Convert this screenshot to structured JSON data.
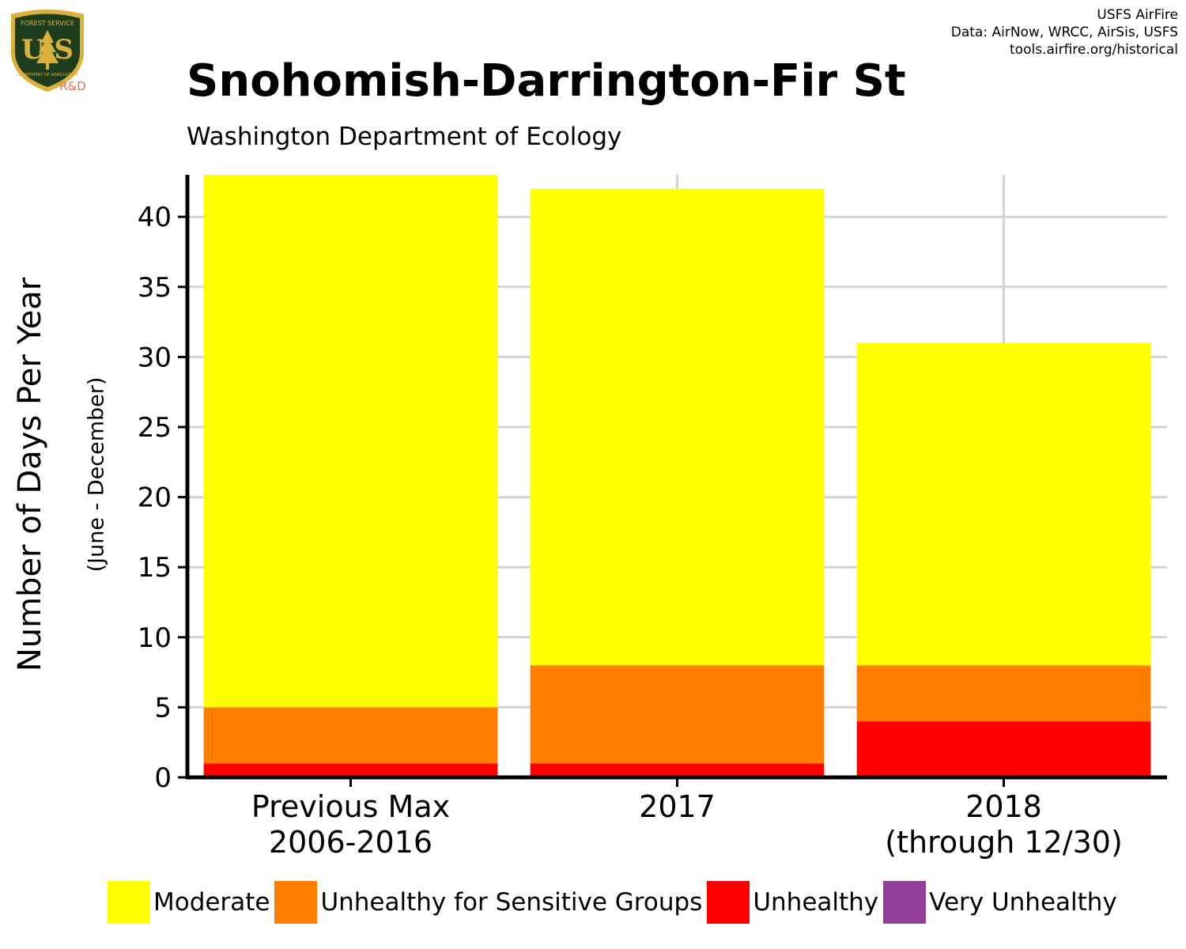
{
  "header": {
    "credit_lines": [
      "USFS AirFire",
      "Data: AirNow, WRCC, AirSis, USFS",
      "tools.airfire.org/historical"
    ],
    "logo_text_top": "FOREST SERVICE",
    "logo_text_big": "U S",
    "logo_text_bottom": "DEPARTMENT OF AGRICULTURE",
    "logo_rd": "R&D"
  },
  "colors": {
    "moderate": "#ffff00",
    "usg": "#ff7e00",
    "unhealthy": "#ff0000",
    "very_unhealthy": "#8f3f97",
    "grid": "#d3d3d3",
    "logo_shield": "#1d3d1d",
    "logo_gold": "#d9b13b",
    "logo_rd": "#e4704f"
  },
  "chart_data": {
    "type": "bar",
    "stacked": true,
    "title": "Snohomish-Darrington-Fir St",
    "subtitle": "Washington Department of Ecology",
    "ylabel": "Number of Days Per Year",
    "ylabel_sub": "(June - December)",
    "ylim": [
      0,
      43
    ],
    "yticks": [
      0,
      5,
      10,
      15,
      20,
      25,
      30,
      35,
      40
    ],
    "grid": true,
    "legend_position": "bottom",
    "categories": [
      [
        "Previous Max",
        "2006-2016"
      ],
      [
        "2017"
      ],
      [
        "2018",
        "(through 12/30)"
      ]
    ],
    "series": [
      {
        "name": "Unhealthy",
        "color_key": "unhealthy",
        "values": [
          1,
          1,
          4
        ]
      },
      {
        "name": "Unhealthy for Sensitive Groups",
        "color_key": "usg",
        "values": [
          4,
          7,
          4
        ]
      },
      {
        "name": "Moderate",
        "color_key": "moderate",
        "values": [
          38,
          34,
          23
        ]
      },
      {
        "name": "Very Unhealthy",
        "color_key": "very_unhealthy",
        "values": [
          0,
          0,
          0
        ]
      }
    ],
    "legend": [
      {
        "name": "Moderate",
        "color_key": "moderate"
      },
      {
        "name": "Unhealthy for Sensitive Groups",
        "color_key": "usg"
      },
      {
        "name": "Unhealthy",
        "color_key": "unhealthy"
      },
      {
        "name": "Very Unhealthy",
        "color_key": "very_unhealthy"
      }
    ]
  }
}
